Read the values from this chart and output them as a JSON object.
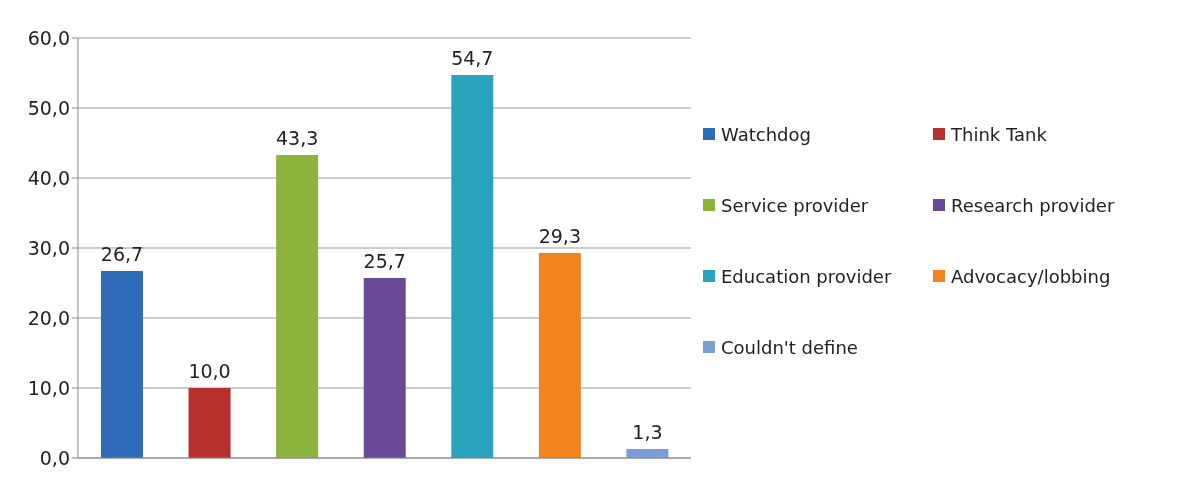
{
  "chart_data": {
    "type": "bar",
    "categories": [
      null,
      null,
      null,
      null,
      null,
      null,
      null
    ],
    "series": [
      {
        "name": "Watchdog",
        "color": "#2e6bb8",
        "values": [
          26.7,
          null,
          null,
          null,
          null,
          null,
          null
        ],
        "value_labels": [
          "26,7",
          null,
          null,
          null,
          null,
          null,
          null
        ]
      },
      {
        "name": "Think Tank",
        "color": "#b8302e",
        "values": [
          null,
          10.0,
          null,
          null,
          null,
          null,
          null
        ],
        "value_labels": [
          null,
          "10,0",
          null,
          null,
          null,
          null,
          null
        ]
      },
      {
        "name": "Service provider",
        "color": "#8cb43c",
        "values": [
          null,
          null,
          43.3,
          null,
          null,
          null,
          null
        ],
        "value_labels": [
          null,
          null,
          "43,3",
          null,
          null,
          null,
          null
        ]
      },
      {
        "name": "Research provider",
        "color": "#6a4a98",
        "values": [
          null,
          null,
          null,
          25.7,
          null,
          null,
          null
        ],
        "value_labels": [
          null,
          null,
          null,
          "25,7",
          null,
          null,
          null
        ]
      },
      {
        "name": "Education provider",
        "color": "#2aa3bf",
        "values": [
          null,
          null,
          null,
          null,
          54.7,
          null,
          null
        ],
        "value_labels": [
          null,
          null,
          null,
          null,
          "54,7",
          null,
          null
        ]
      },
      {
        "name": "Advocacy/lobbing",
        "color": "#f0841e",
        "values": [
          null,
          null,
          null,
          null,
          null,
          29.3,
          null
        ],
        "value_labels": [
          null,
          null,
          null,
          null,
          null,
          "29,3",
          null
        ]
      },
      {
        "name": "Couldn't define",
        "color": "#7a9fd6",
        "values": [
          null,
          null,
          null,
          null,
          null,
          null,
          1.3
        ],
        "value_labels": [
          null,
          null,
          null,
          null,
          null,
          null,
          "1,3"
        ]
      }
    ],
    "ylim": [
      0,
      60
    ],
    "yticks": [
      {
        "value": 0,
        "label": "0,0"
      },
      {
        "value": 10,
        "label": "10,0"
      },
      {
        "value": 20,
        "label": "20,0"
      },
      {
        "value": 30,
        "label": "30,0"
      },
      {
        "value": 40,
        "label": "40,0"
      },
      {
        "value": 50,
        "label": "50,0"
      },
      {
        "value": 60,
        "label": "60,0"
      }
    ],
    "grid": "y",
    "legend": "right"
  }
}
